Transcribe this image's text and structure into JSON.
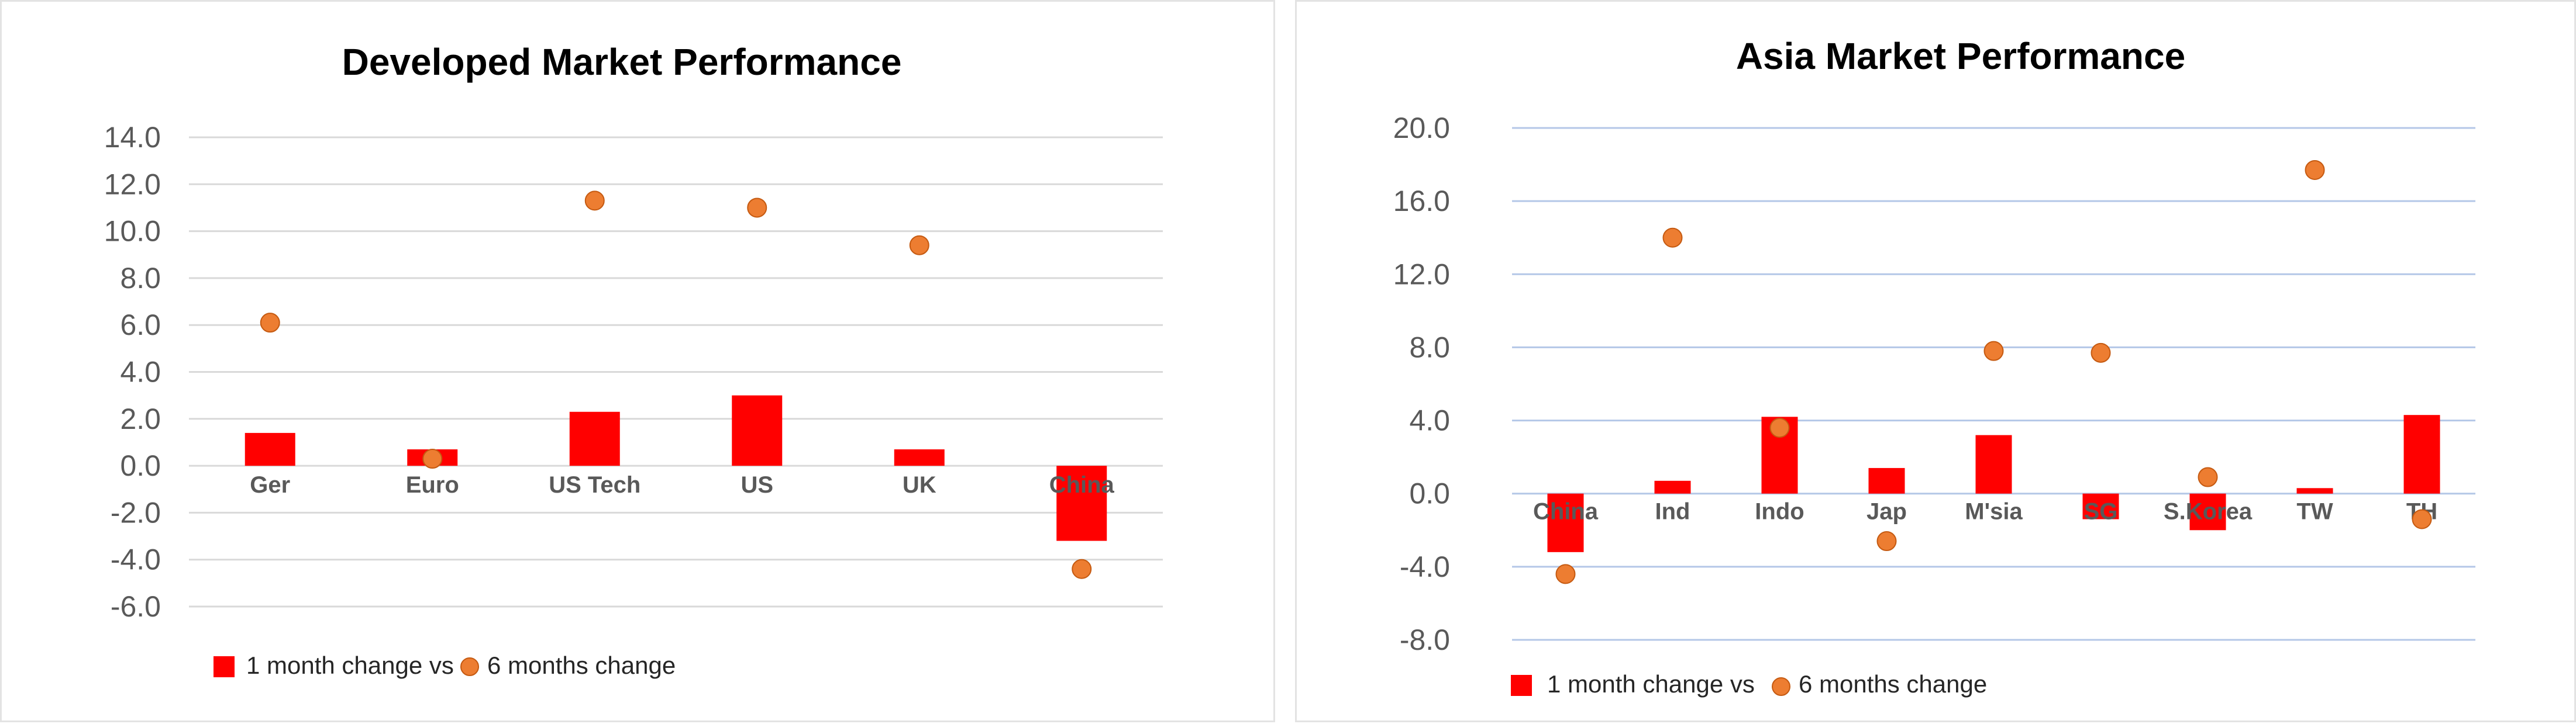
{
  "colors": {
    "bar": "#ff0000",
    "dot": "#ed7d31",
    "dot_edge": "#c55a11",
    "grid_left": "#d9d9d9",
    "grid_right": "#b4c7e7"
  },
  "chart_data": [
    {
      "type": "bar",
      "title": "Developed Market Performance",
      "categories": [
        "Ger",
        "Euro",
        "US Tech",
        "US",
        "UK",
        "China"
      ],
      "series": [
        {
          "name": "1 month change vs",
          "type": "bar",
          "values": [
            1.4,
            0.7,
            2.3,
            3.0,
            0.7,
            -3.2
          ]
        },
        {
          "name": "6 months change",
          "type": "scatter",
          "values": [
            6.1,
            0.3,
            11.3,
            11.0,
            9.4,
            -4.4
          ]
        }
      ],
      "ylim": [
        -6.0,
        14.0
      ],
      "yticks": [
        14.0,
        12.0,
        10.0,
        8.0,
        6.0,
        4.0,
        2.0,
        0.0,
        -2.0,
        -4.0,
        -6.0
      ],
      "ytick_labels": [
        "14.0",
        "12.0",
        "10.0",
        "8.0",
        "6.0",
        "4.0",
        "2.0",
        "0.0",
        "-2.0",
        "-4.0",
        "-6.0"
      ],
      "grid": true,
      "legend": "bottom-left"
    },
    {
      "type": "bar",
      "title": "Asia Market Performance",
      "categories": [
        "China",
        "Ind",
        "Indo",
        "Jap",
        "M'sia",
        "SG",
        "S.Korea",
        "TW",
        "TH"
      ],
      "series": [
        {
          "name": "1 month change vs",
          "type": "bar",
          "values": [
            -3.2,
            0.7,
            4.2,
            1.4,
            3.2,
            -1.4,
            -2.0,
            0.3,
            4.3
          ]
        },
        {
          "name": "6 months change",
          "type": "scatter",
          "values": [
            -4.4,
            14.0,
            3.6,
            -2.6,
            7.8,
            7.7,
            0.9,
            17.7,
            -1.4
          ]
        }
      ],
      "ylim": [
        -8.0,
        20.0
      ],
      "yticks": [
        20.0,
        16.0,
        12.0,
        8.0,
        4.0,
        0.0,
        -4.0,
        -8.0
      ],
      "ytick_labels": [
        "20.0",
        "16.0",
        "12.0",
        "8.0",
        "4.0",
        "0.0",
        "-4.0",
        "-8.0"
      ],
      "grid": true,
      "legend": "bottom-left"
    }
  ]
}
